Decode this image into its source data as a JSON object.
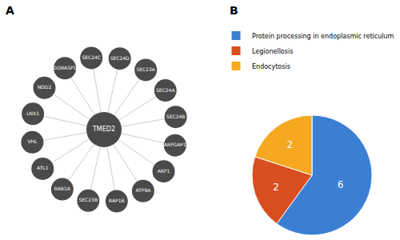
{
  "chart_data": [
    {
      "type": "network",
      "title": "A",
      "center": "TMED2",
      "categories": [
        "SEC24C",
        "SEC24D",
        "SEC23A",
        "SEC24A",
        "SEC24B",
        "ARFGAP1",
        "ARF1",
        "ATP9A",
        "RAP1B",
        "SEC23B",
        "RAB1A",
        "ATL1",
        "VHL",
        "LNX1",
        "NOD2",
        "GORASP1"
      ],
      "color": "#4a4a4a"
    },
    {
      "type": "pie",
      "title": "B",
      "categories": [
        "Protein processing in endoplasmic reticulum",
        "Legionellosis",
        "Endocytosis"
      ],
      "values": [
        6,
        2,
        2
      ],
      "colors": [
        "#3b7fd4",
        "#d94e1f",
        "#f5a820"
      ],
      "data_labels": true,
      "legend": "top"
    }
  ]
}
